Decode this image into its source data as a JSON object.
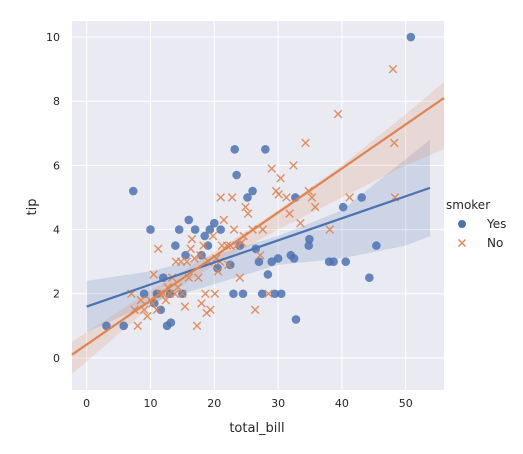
{
  "chart_data": {
    "type": "scatter",
    "title": "",
    "xlabel": "total_bill",
    "ylabel": "tip",
    "xlim": [
      -2.3,
      56
    ],
    "ylim": [
      -1,
      10.5
    ],
    "xticks": [
      0,
      10,
      20,
      30,
      40,
      50
    ],
    "yticks": [
      0,
      2,
      4,
      6,
      8,
      10
    ],
    "grid": true,
    "background": "#eaeaf2",
    "legend": {
      "title": "smoker",
      "placement": "right"
    },
    "series": [
      {
        "name": "Yes",
        "marker": "circle",
        "color": "#4c72b0",
        "regression": {
          "x": [
            0,
            53.8
          ],
          "y": [
            1.6,
            5.3
          ]
        },
        "ci_band": {
          "x": [
            0,
            10,
            20,
            30,
            40,
            50,
            53.8
          ],
          "lower": [
            0.8,
            1.7,
            2.3,
            2.9,
            3.1,
            3.5,
            3.8
          ],
          "upper": [
            2.4,
            2.7,
            3.2,
            3.8,
            4.6,
            6.2,
            6.8
          ]
        },
        "points": [
          [
            3.1,
            1.0
          ],
          [
            7.3,
            5.2
          ],
          [
            10.0,
            4.0
          ],
          [
            10.6,
            1.7
          ],
          [
            11.0,
            2.0
          ],
          [
            12.0,
            2.5
          ],
          [
            12.6,
            1.0
          ],
          [
            13.1,
            2.0
          ],
          [
            13.9,
            3.5
          ],
          [
            14.5,
            4.0
          ],
          [
            15.0,
            2.0
          ],
          [
            15.5,
            3.2
          ],
          [
            16.0,
            4.3
          ],
          [
            17.0,
            4.0
          ],
          [
            18.0,
            3.2
          ],
          [
            18.5,
            3.8
          ],
          [
            19.0,
            3.5
          ],
          [
            19.3,
            4.0
          ],
          [
            20.0,
            4.2
          ],
          [
            20.5,
            2.8
          ],
          [
            21.0,
            4.0
          ],
          [
            22.5,
            2.9
          ],
          [
            23.0,
            2.0
          ],
          [
            23.2,
            6.5
          ],
          [
            23.5,
            5.7
          ],
          [
            24.0,
            3.5
          ],
          [
            24.5,
            2.0
          ],
          [
            25.2,
            5.0
          ],
          [
            26.0,
            5.2
          ],
          [
            26.5,
            3.4
          ],
          [
            27.0,
            3.0
          ],
          [
            27.5,
            2.0
          ],
          [
            28.0,
            6.5
          ],
          [
            28.4,
            2.6
          ],
          [
            29.0,
            3.0
          ],
          [
            29.5,
            2.0
          ],
          [
            30.0,
            3.1
          ],
          [
            30.5,
            2.0
          ],
          [
            32.0,
            3.2
          ],
          [
            32.5,
            3.1
          ],
          [
            32.7,
            5.0
          ],
          [
            32.8,
            1.2
          ],
          [
            34.8,
            3.5
          ],
          [
            34.9,
            3.7
          ],
          [
            38.0,
            3.0
          ],
          [
            38.7,
            3.0
          ],
          [
            40.2,
            4.7
          ],
          [
            40.6,
            3.0
          ],
          [
            43.1,
            5.0
          ],
          [
            44.3,
            2.5
          ],
          [
            45.4,
            3.5
          ],
          [
            50.8,
            10.0
          ],
          [
            5.8,
            1.0
          ],
          [
            9.0,
            2.0
          ],
          [
            11.6,
            1.5
          ],
          [
            13.2,
            1.1
          ]
        ]
      },
      {
        "name": "No",
        "marker": "x",
        "color": "#dd8452",
        "regression": {
          "x": [
            -2.3,
            56
          ],
          "y": [
            0.1,
            8.1
          ]
        },
        "ci_band": {
          "x": [
            -2.3,
            10,
            20,
            30,
            40,
            50,
            56
          ],
          "lower": [
            -0.5,
            1.6,
            2.9,
            4.0,
            5.0,
            6.0,
            6.5
          ],
          "upper": [
            0.5,
            2.1,
            3.3,
            4.6,
            6.0,
            7.6,
            8.6
          ]
        },
        "points": [
          [
            7.0,
            2.0
          ],
          [
            7.5,
            1.5
          ],
          [
            8.0,
            1.0
          ],
          [
            8.5,
            1.8
          ],
          [
            9.0,
            1.5
          ],
          [
            9.5,
            1.3
          ],
          [
            10.0,
            1.8
          ],
          [
            10.3,
            1.7
          ],
          [
            10.5,
            2.6
          ],
          [
            11.0,
            1.5
          ],
          [
            11.2,
            3.4
          ],
          [
            11.5,
            2.0
          ],
          [
            12.0,
            2.0
          ],
          [
            12.4,
            1.8
          ],
          [
            12.7,
            2.2
          ],
          [
            13.0,
            2.0
          ],
          [
            13.4,
            2.5
          ],
          [
            13.8,
            2.0
          ],
          [
            14.0,
            3.0
          ],
          [
            14.3,
            2.2
          ],
          [
            14.8,
            3.0
          ],
          [
            15.0,
            2.0
          ],
          [
            15.4,
            1.6
          ],
          [
            15.7,
            3.0
          ],
          [
            16.0,
            2.5
          ],
          [
            16.3,
            3.4
          ],
          [
            16.5,
            3.7
          ],
          [
            16.9,
            3.1
          ],
          [
            17.3,
            1.0
          ],
          [
            17.5,
            2.5
          ],
          [
            17.8,
            3.2
          ],
          [
            18.0,
            1.7
          ],
          [
            18.3,
            3.5
          ],
          [
            18.6,
            2.0
          ],
          [
            18.8,
            1.4
          ],
          [
            19.1,
            3.0
          ],
          [
            19.4,
            1.5
          ],
          [
            19.8,
            3.8
          ],
          [
            20.1,
            2.0
          ],
          [
            20.3,
            3.1
          ],
          [
            20.6,
            2.7
          ],
          [
            20.9,
            3.0
          ],
          [
            21.0,
            5.0
          ],
          [
            21.2,
            3.5
          ],
          [
            21.5,
            4.3
          ],
          [
            22.0,
            3.5
          ],
          [
            22.2,
            2.9
          ],
          [
            22.5,
            3.5
          ],
          [
            22.8,
            5.0
          ],
          [
            23.1,
            4.0
          ],
          [
            23.5,
            3.5
          ],
          [
            24.0,
            2.5
          ],
          [
            24.3,
            3.6
          ],
          [
            24.6,
            3.8
          ],
          [
            24.9,
            4.7
          ],
          [
            25.3,
            4.5
          ],
          [
            26.0,
            4.0
          ],
          [
            26.4,
            1.5
          ],
          [
            27.2,
            3.2
          ],
          [
            27.6,
            4.0
          ],
          [
            28.5,
            2.0
          ],
          [
            29.0,
            5.9
          ],
          [
            29.7,
            5.2
          ],
          [
            30.1,
            5.1
          ],
          [
            30.4,
            5.6
          ],
          [
            31.3,
            5.0
          ],
          [
            31.8,
            4.5
          ],
          [
            32.4,
            6.0
          ],
          [
            33.5,
            4.2
          ],
          [
            34.3,
            6.7
          ],
          [
            34.8,
            5.2
          ],
          [
            35.3,
            5.0
          ],
          [
            35.8,
            4.7
          ],
          [
            38.1,
            4.0
          ],
          [
            39.4,
            7.6
          ],
          [
            41.2,
            5.0
          ],
          [
            48.0,
            9.0
          ],
          [
            48.2,
            6.7
          ],
          [
            48.3,
            5.0
          ]
        ]
      }
    ]
  }
}
